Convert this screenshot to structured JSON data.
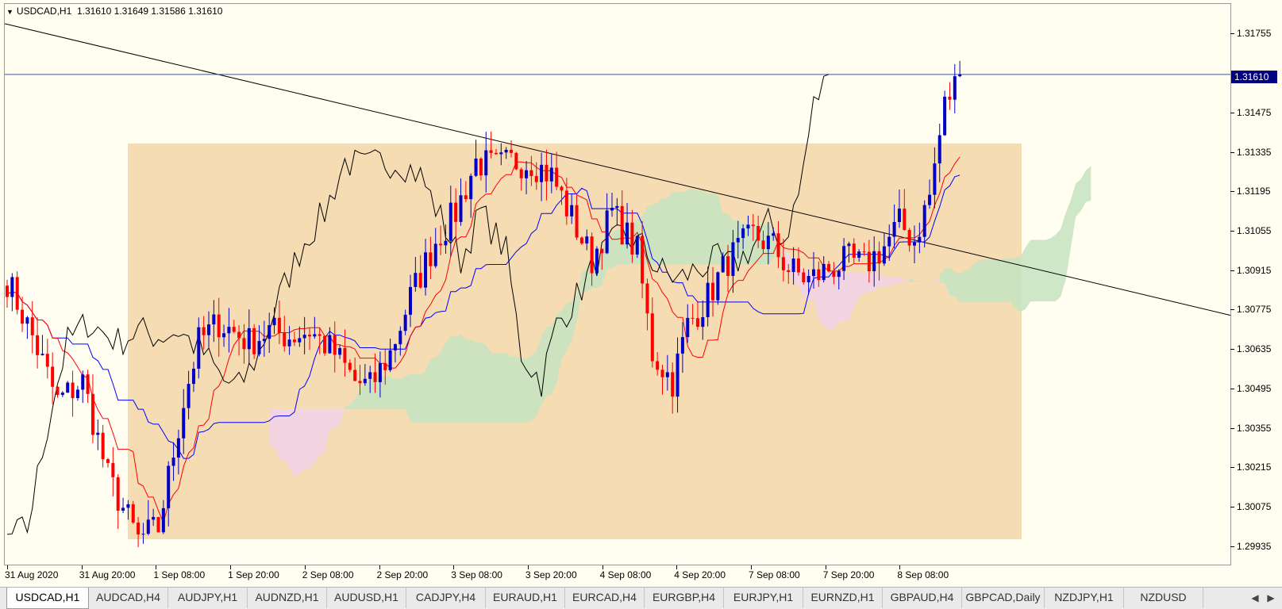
{
  "header": {
    "symbol": "USDCAD,H1",
    "ohlc": "1.31610 1.31649 1.31586 1.31610"
  },
  "price_label": "1.31610",
  "chart_data": {
    "type": "candlestick",
    "symbol": "USDCAD",
    "timeframe": "H1",
    "ylim": [
      1.2987,
      1.3186
    ],
    "y_ticks": [
      "1.31755",
      "1.31475",
      "1.31335",
      "1.31195",
      "1.31055",
      "1.30915",
      "1.30775",
      "1.30635",
      "1.30495",
      "1.30355",
      "1.30215",
      "1.30075",
      "1.29935"
    ],
    "x_ticks": [
      "31 Aug 2020",
      "31 Aug 20:00",
      "1 Sep 08:00",
      "1 Sep 20:00",
      "2 Sep 08:00",
      "2 Sep 20:00",
      "3 Sep 08:00",
      "3 Sep 20:00",
      "4 Sep 08:00",
      "4 Sep 20:00",
      "7 Sep 08:00",
      "7 Sep 20:00",
      "8 Sep 08:00"
    ],
    "current_price": 1.3161,
    "rectangle_zone": {
      "top": 1.31365,
      "bottom": 1.2996
    },
    "trendline": {
      "start_price": 1.3179,
      "end_price": 1.30755
    },
    "colors": {
      "bull": "#0000c8",
      "bear": "#ff0000",
      "tenkan": "#ff0000",
      "kijun": "#0000ff",
      "chikou": "#000000",
      "kumo_bull": "#c5e3c0",
      "kumo_bear": "#f2d3ea",
      "zone": "#f5dcb2"
    },
    "legend": "none",
    "grid": false
  },
  "tabs": [
    {
      "label": "USDCAD,H1",
      "active": true
    },
    {
      "label": "AUDCAD,H4",
      "active": false
    },
    {
      "label": "AUDJPY,H1",
      "active": false
    },
    {
      "label": "AUDNZD,H1",
      "active": false
    },
    {
      "label": "AUDUSD,H1",
      "active": false
    },
    {
      "label": "CADJPY,H4",
      "active": false
    },
    {
      "label": "EURAUD,H1",
      "active": false
    },
    {
      "label": "EURCAD,H4",
      "active": false
    },
    {
      "label": "EURGBP,H4",
      "active": false
    },
    {
      "label": "EURJPY,H1",
      "active": false
    },
    {
      "label": "EURNZD,H1",
      "active": false
    },
    {
      "label": "GBPAUD,H4",
      "active": false
    },
    {
      "label": "GBPCAD,Daily",
      "active": false
    },
    {
      "label": "NZDJPY,H1",
      "active": false
    },
    {
      "label": "NZDUSD",
      "active": false
    }
  ],
  "tab_scroll": {
    "left_icon": "triangle-left-icon",
    "right_icon": "triangle-right-icon"
  }
}
